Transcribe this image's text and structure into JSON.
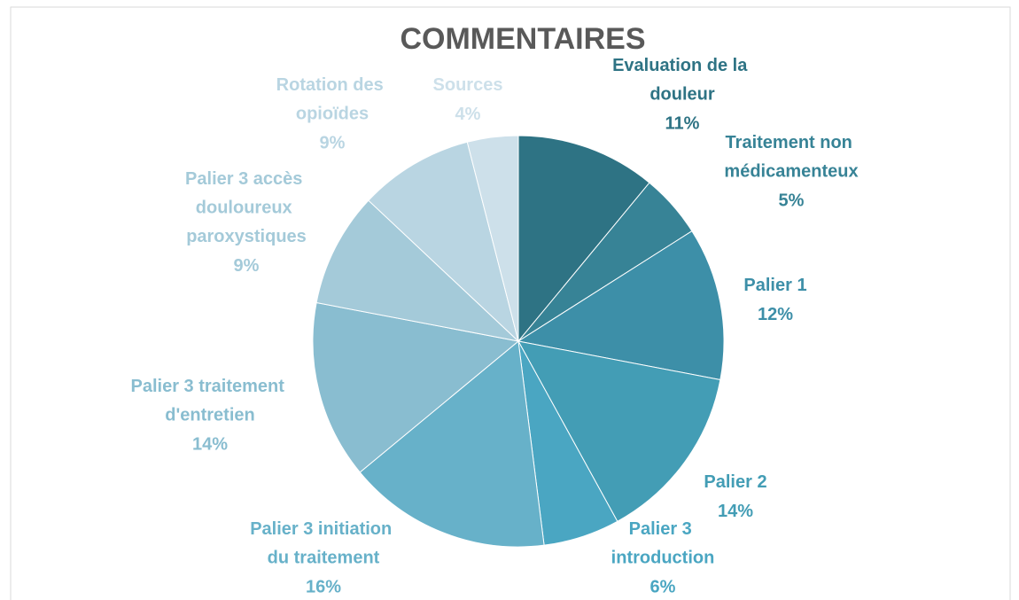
{
  "chart_data": {
    "type": "pie",
    "title": "COMMENTAIRES",
    "categories": [
      "Evaluation de la douleur",
      "Traitement non médicamenteux",
      "Palier 1",
      "Palier 2",
      "Palier 3 introduction",
      "Palier 3 initiation du traitement",
      "Palier 3 traitement d'entretien",
      "Palier 3 accès douloureux paroxystiques",
      "Rotation des opioïdes",
      "Sources"
    ],
    "values": [
      11,
      5,
      12,
      14,
      6,
      16,
      14,
      9,
      9,
      4
    ],
    "value_labels": [
      "11%",
      "5%",
      "12%",
      "14%",
      "6%",
      "16%",
      "14%",
      "9%",
      "9%",
      "4%"
    ],
    "colors": [
      "#2e7384",
      "#378396",
      "#3d8fa8",
      "#439db5",
      "#4aa6c2",
      "#67b1c9",
      "#89bdd0",
      "#a4cad9",
      "#b9d5e2",
      "#cde0ea"
    ]
  }
}
